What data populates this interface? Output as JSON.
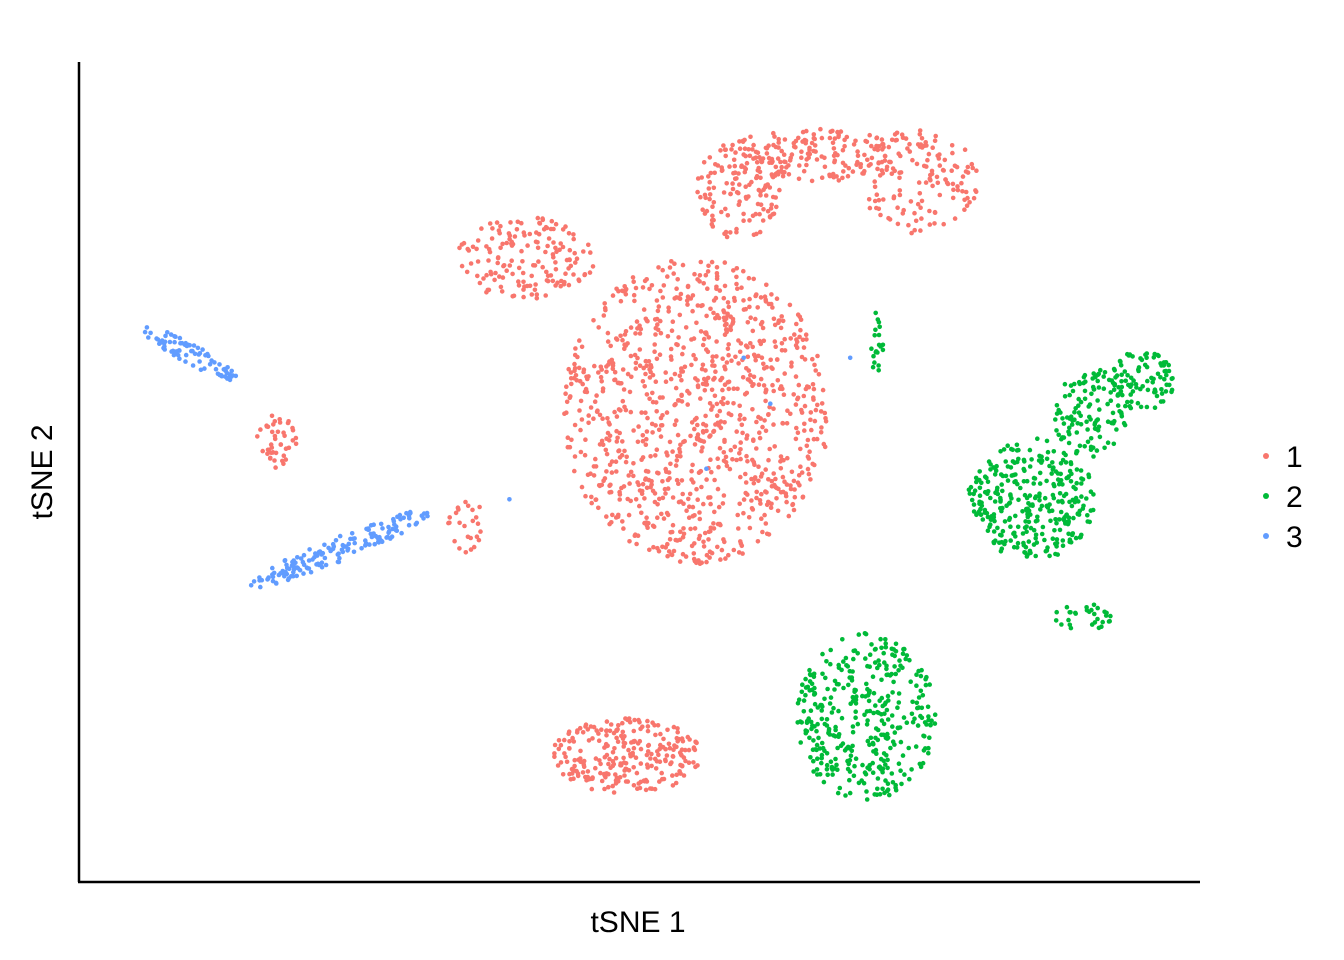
{
  "chart_data": {
    "type": "scatter",
    "title": "",
    "xlabel": "tSNE 1",
    "ylabel": "tSNE 2",
    "xlim": [
      0,
      100
    ],
    "ylim": [
      0,
      100
    ],
    "grid": false,
    "ticks": false,
    "legend_position": "right",
    "series": [
      {
        "name": "1",
        "color": "#F8766D",
        "clusters": [
          {
            "cx": 55,
            "cy": 58,
            "rx": 12.5,
            "ry": 20,
            "n": 1000
          },
          {
            "cx": 39,
            "cy": 78,
            "rx": 6.5,
            "ry": 5.5,
            "n": 160
          },
          {
            "cx": 59,
            "cy": 87,
            "rx": 4,
            "ry": 6.5,
            "n": 130
          },
          {
            "cx": 66,
            "cy": 91.5,
            "rx": 8,
            "ry": 3.5,
            "n": 160
          },
          {
            "cx": 76,
            "cy": 88,
            "rx": 5.5,
            "ry": 7,
            "n": 140
          },
          {
            "cx": 48.5,
            "cy": 13,
            "rx": 7,
            "ry": 5,
            "n": 260
          },
          {
            "cx": 15.5,
            "cy": 54,
            "rx": 2,
            "ry": 3.5,
            "n": 45
          },
          {
            "cx": 33.5,
            "cy": 43,
            "rx": 1.8,
            "ry": 3.5,
            "n": 25
          },
          {
            "cx": 58,
            "cy": 70,
            "rx": 0.6,
            "ry": 1.8,
            "n": 12
          }
        ]
      },
      {
        "name": "2",
        "color": "#00BA38",
        "clusters": [
          {
            "cx": 86.5,
            "cy": 46.5,
            "rx": 6,
            "ry": 8,
            "n": 320
          },
          {
            "cx": 92,
            "cy": 58,
            "rx": 3.5,
            "ry": 6,
            "n": 120
          },
          {
            "cx": 97,
            "cy": 62,
            "rx": 3,
            "ry": 4,
            "n": 90
          },
          {
            "cx": 71,
            "cy": 18,
            "rx": 6.5,
            "ry": 11,
            "n": 380
          },
          {
            "cx": 91.5,
            "cy": 31,
            "rx": 3,
            "ry": 1.8,
            "n": 30
          },
          {
            "cx": 72,
            "cy": 67,
            "rx": 0.6,
            "ry": 4,
            "n": 20
          }
        ]
      },
      {
        "name": "3",
        "color": "#619CFF",
        "clusters": [
          {
            "cx": 7.5,
            "cy": 65.5,
            "rx": 5.5,
            "ry": 1.2,
            "angle": -38,
            "n": 80
          },
          {
            "cx": 21.5,
            "cy": 40,
            "rx": 10,
            "ry": 1.5,
            "angle": 30,
            "n": 160
          }
        ],
        "stray_points": [
          [
            59.5,
            65
          ],
          [
            69.5,
            65
          ],
          [
            37.5,
            46.5
          ],
          [
            56,
            50.5
          ],
          [
            62,
            59
          ]
        ]
      }
    ]
  }
}
